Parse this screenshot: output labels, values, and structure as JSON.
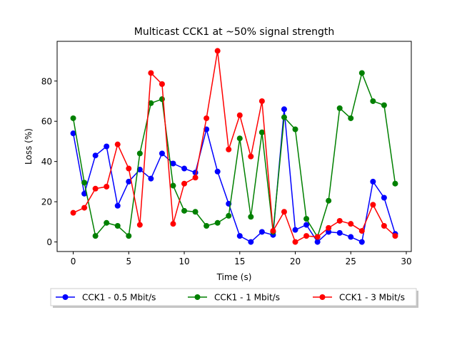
{
  "chart_data": {
    "type": "line",
    "title": "Multicast CCK1 at ~50% signal strength",
    "xlabel": "Time (s)",
    "ylabel": "Loss (%)",
    "xlim": [
      -1.45,
      30.45
    ],
    "ylim": [
      -4.75,
      99.75
    ],
    "xticks": [
      0,
      5,
      10,
      15,
      20,
      25,
      30
    ],
    "yticks": [
      0,
      20,
      40,
      60,
      80
    ],
    "grid": false,
    "legend_position": "bottom-center, below axes, 3 columns",
    "x": [
      0,
      1,
      2,
      3,
      4,
      5,
      6,
      7,
      8,
      9,
      10,
      11,
      12,
      13,
      14,
      15,
      16,
      17,
      18,
      19,
      20,
      21,
      22,
      23,
      24,
      25,
      26,
      27,
      28,
      29
    ],
    "series": [
      {
        "name": "CCK1 - 0.5 Mbit/s",
        "color": "#0000ff",
        "values": [
          54,
          24,
          43,
          47.5,
          18,
          30,
          36,
          31.5,
          44,
          39,
          36.5,
          34.5,
          56,
          35,
          19,
          3,
          0,
          5,
          3.5,
          66,
          6,
          8.5,
          0,
          5,
          4.5,
          2.5,
          0,
          30,
          22,
          4
        ]
      },
      {
        "name": "CCK1 - 1 Mbit/s",
        "color": "#008000",
        "values": [
          61.5,
          29.5,
          3,
          9.5,
          8,
          3,
          44,
          69,
          71,
          28,
          15.5,
          15,
          8,
          9.5,
          13,
          51.5,
          12.5,
          54.5,
          5,
          62,
          56,
          11.5,
          2.5,
          20.5,
          66.5,
          61.5,
          84,
          70,
          68,
          29
        ]
      },
      {
        "name": "CCK1 - 3 Mbit/s",
        "color": "#ff0000",
        "values": [
          14.5,
          17,
          26.5,
          27.5,
          48.5,
          36.5,
          8.5,
          84,
          78.5,
          9,
          29,
          32,
          61.5,
          95,
          46,
          63,
          42.5,
          70,
          5.5,
          15,
          0,
          3,
          2.5,
          7,
          10.5,
          9,
          5.5,
          18.5,
          8,
          3
        ]
      }
    ]
  }
}
